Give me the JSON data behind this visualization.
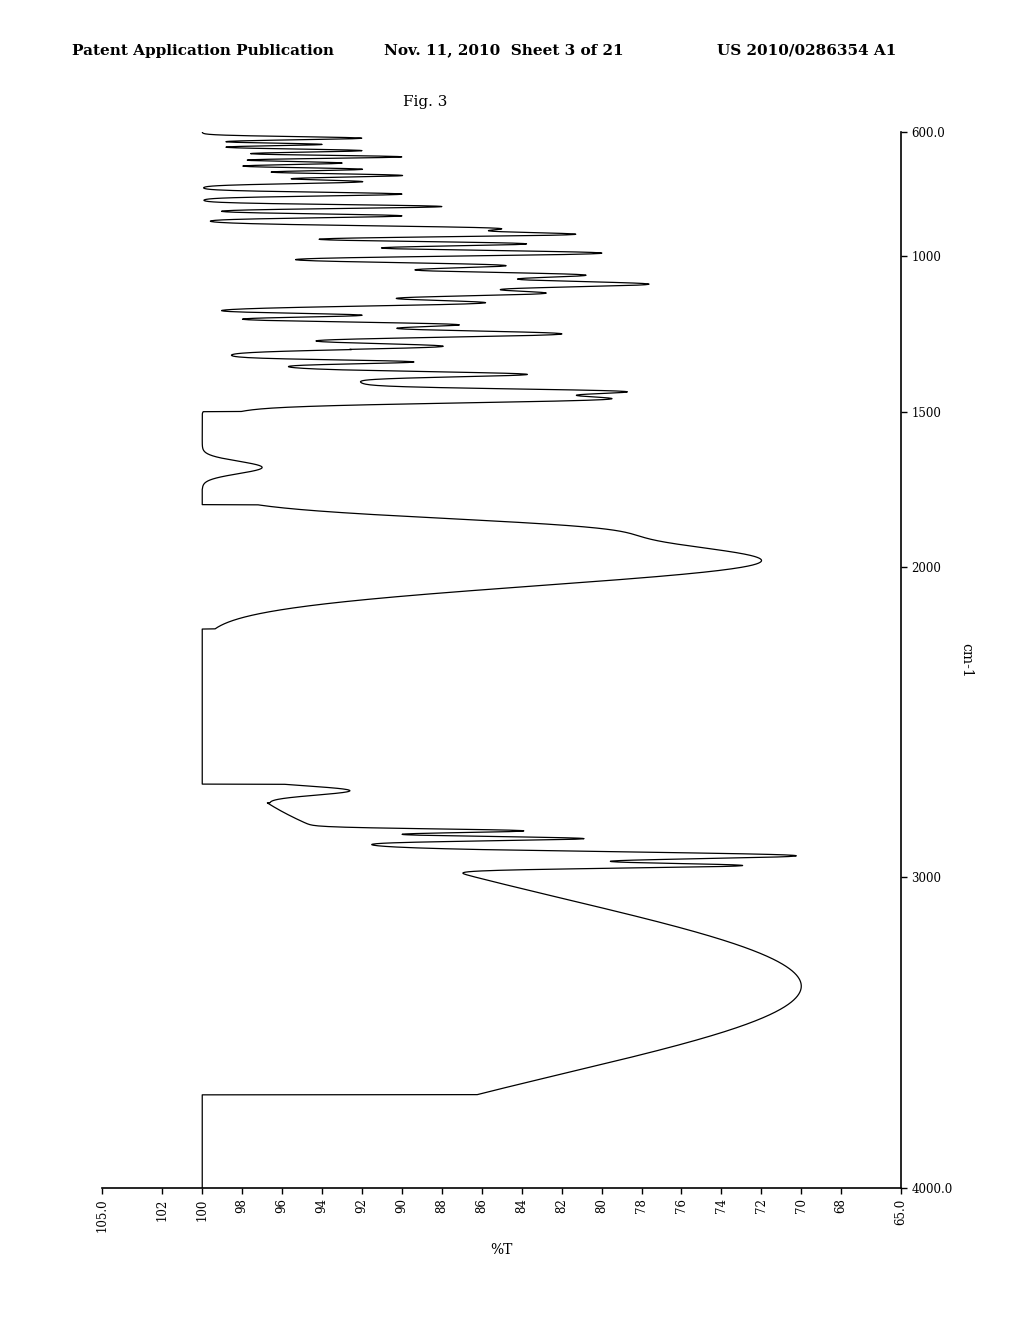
{
  "title": "Fig. 3",
  "header_left": "Patent Application Publication",
  "header_center": "Nov. 11, 2010  Sheet 3 of 21",
  "header_right": "US 2010/0286354 A1",
  "xlabel": "%T",
  "ylabel": "cm-1",
  "x_min": 65.0,
  "x_max": 105.0,
  "y_min": 600.0,
  "y_max": 4000.0,
  "x_ticks": [
    105.0,
    102,
    100,
    98,
    96,
    94,
    92,
    90,
    88,
    86,
    84,
    82,
    80,
    78,
    76,
    74,
    72,
    70,
    68,
    65.0
  ],
  "y_ticks": [
    600.0,
    1000,
    1500,
    2000,
    3000,
    4000.0
  ],
  "background_color": "#ffffff",
  "line_color": "#000000",
  "text_color": "#000000",
  "font_size": 9,
  "header_font_size": 11
}
